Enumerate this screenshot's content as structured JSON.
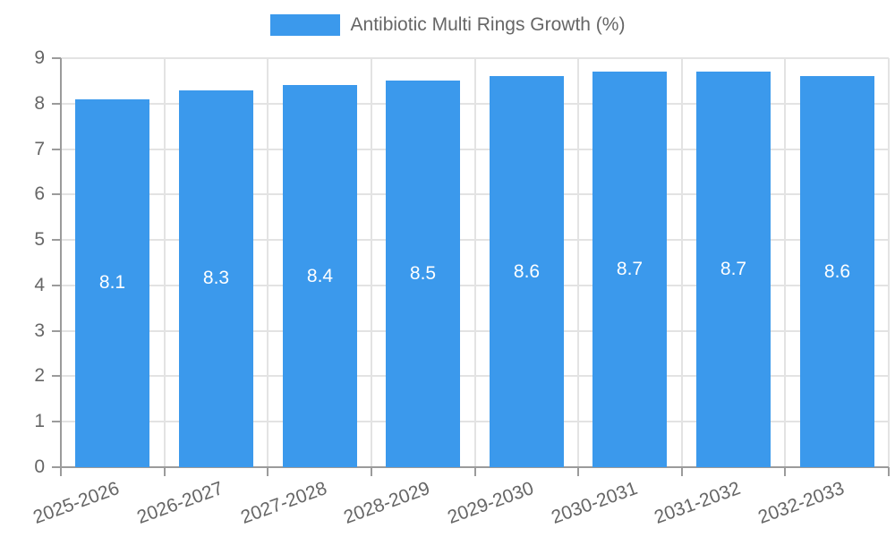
{
  "chart_data": {
    "type": "bar",
    "title": "Antibiotic Multi Rings Growth (%)",
    "categories": [
      "2025-2026",
      "2026-2027",
      "2027-2028",
      "2028-2029",
      "2029-2030",
      "2030-2031",
      "2031-2032",
      "2032-2033"
    ],
    "values": [
      8.1,
      8.3,
      8.4,
      8.5,
      8.6,
      8.7,
      8.7,
      8.6
    ],
    "value_labels": [
      "8.1",
      "8.3",
      "8.4",
      "8.5",
      "8.6",
      "8.7",
      "8.7",
      "8.6"
    ],
    "xlabel": "",
    "ylabel": "",
    "ylim": [
      0,
      9
    ],
    "yticks": [
      0,
      1,
      2,
      3,
      4,
      5,
      6,
      7,
      8,
      9
    ],
    "grid": true,
    "legend_position": "top",
    "x_label_rotation_deg": -20,
    "colors": {
      "bar": "#3B99EC",
      "grid": "#e3e3e3",
      "axis": "#9b9b9b",
      "tick_text": "#666666",
      "legend_text": "#666666",
      "value_label_text": "#ffffff",
      "background": "#ffffff"
    }
  }
}
